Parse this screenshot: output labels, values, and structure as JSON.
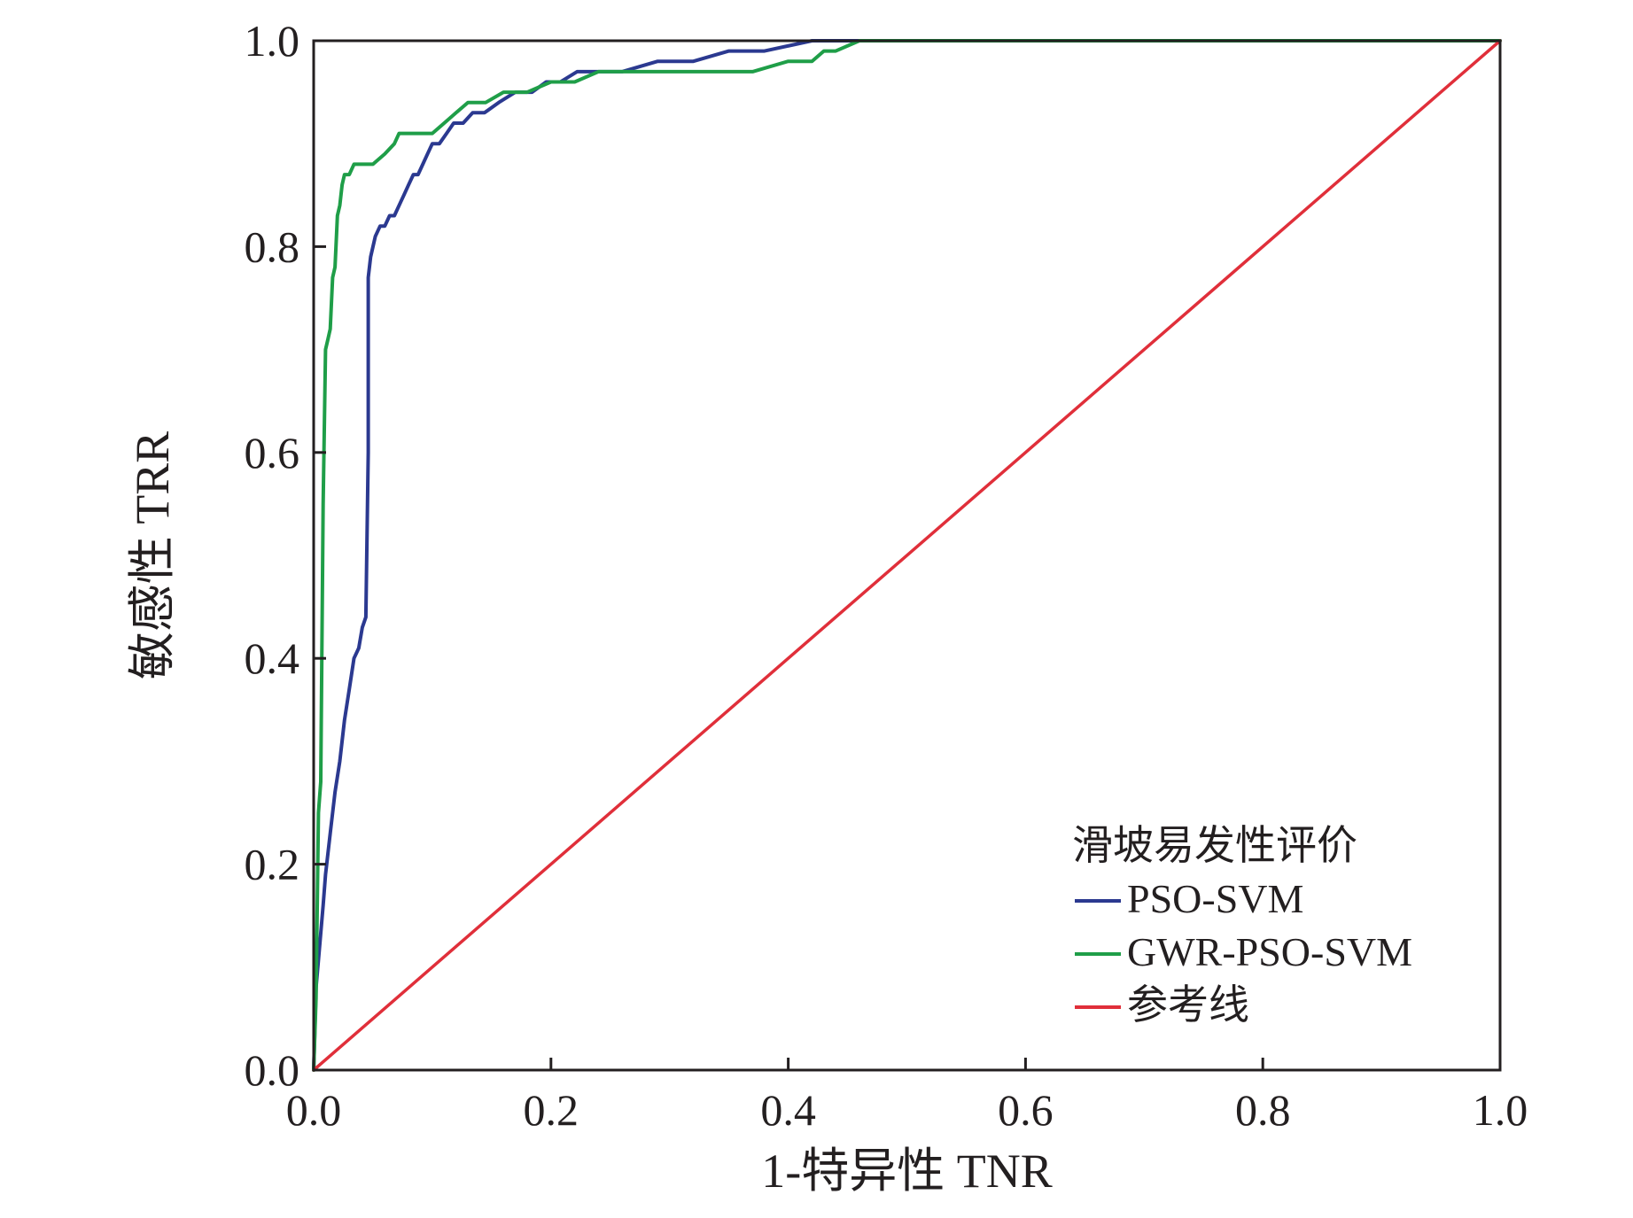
{
  "chart_data": {
    "type": "line",
    "title": "",
    "xlabel": "1-特异性 TNR",
    "ylabel": "敏感性 TRR",
    "xlim": [
      0.0,
      1.0
    ],
    "ylim": [
      0.0,
      1.0
    ],
    "xticks": [
      "0.0",
      "0.2",
      "0.4",
      "0.6",
      "0.8",
      "1.0"
    ],
    "yticks": [
      "0.0",
      "0.2",
      "0.4",
      "0.6",
      "0.8",
      "1.0"
    ],
    "grid": false,
    "legend": {
      "title": "滑坡易发性评价",
      "position": "bottom-right"
    },
    "series": [
      {
        "name": "PSO-SVM",
        "color": "#2b3990",
        "x": [
          0.0,
          0.002,
          0.005,
          0.008,
          0.01,
          0.014,
          0.018,
          0.022,
          0.026,
          0.03,
          0.034,
          0.038,
          0.041,
          0.044,
          0.046,
          0.046,
          0.048,
          0.052,
          0.056,
          0.06,
          0.064,
          0.068,
          0.072,
          0.076,
          0.08,
          0.084,
          0.088,
          0.092,
          0.096,
          0.1,
          0.106,
          0.112,
          0.118,
          0.126,
          0.134,
          0.144,
          0.156,
          0.17,
          0.184,
          0.196,
          0.208,
          0.222,
          0.24,
          0.26,
          0.29,
          0.32,
          0.35,
          0.38,
          0.42,
          0.45,
          1.0
        ],
        "y": [
          0.0,
          0.08,
          0.12,
          0.16,
          0.19,
          0.23,
          0.27,
          0.3,
          0.34,
          0.37,
          0.4,
          0.41,
          0.43,
          0.44,
          0.6,
          0.77,
          0.79,
          0.81,
          0.82,
          0.82,
          0.83,
          0.83,
          0.84,
          0.85,
          0.86,
          0.87,
          0.87,
          0.88,
          0.89,
          0.9,
          0.9,
          0.91,
          0.92,
          0.92,
          0.93,
          0.93,
          0.94,
          0.95,
          0.95,
          0.96,
          0.96,
          0.97,
          0.97,
          0.97,
          0.98,
          0.98,
          0.99,
          0.99,
          1.0,
          1.0,
          1.0
        ]
      },
      {
        "name": "GWR-PSO-SVM",
        "color": "#1f9e48",
        "x": [
          0.0,
          0.002,
          0.004,
          0.006,
          0.008,
          0.01,
          0.012,
          0.014,
          0.016,
          0.018,
          0.02,
          0.022,
          0.024,
          0.026,
          0.028,
          0.03,
          0.034,
          0.04,
          0.05,
          0.06,
          0.068,
          0.072,
          0.08,
          0.09,
          0.1,
          0.11,
          0.12,
          0.13,
          0.145,
          0.16,
          0.18,
          0.2,
          0.22,
          0.24,
          0.27,
          0.3,
          0.34,
          0.37,
          0.4,
          0.41,
          0.42,
          0.43,
          0.44,
          0.46,
          0.5,
          0.6,
          0.69,
          1.0
        ],
        "y": [
          0.0,
          0.07,
          0.25,
          0.28,
          0.55,
          0.7,
          0.71,
          0.72,
          0.77,
          0.78,
          0.83,
          0.84,
          0.86,
          0.87,
          0.87,
          0.87,
          0.88,
          0.88,
          0.88,
          0.89,
          0.9,
          0.91,
          0.91,
          0.91,
          0.91,
          0.92,
          0.93,
          0.94,
          0.94,
          0.95,
          0.95,
          0.96,
          0.96,
          0.97,
          0.97,
          0.97,
          0.97,
          0.97,
          0.98,
          0.98,
          0.98,
          0.99,
          0.99,
          1.0,
          1.0,
          1.0,
          1.0,
          1.0
        ]
      },
      {
        "name": "参考线",
        "color": "#e02f3a",
        "x": [
          0.0,
          1.0
        ],
        "y": [
          0.0,
          1.0
        ]
      }
    ]
  }
}
